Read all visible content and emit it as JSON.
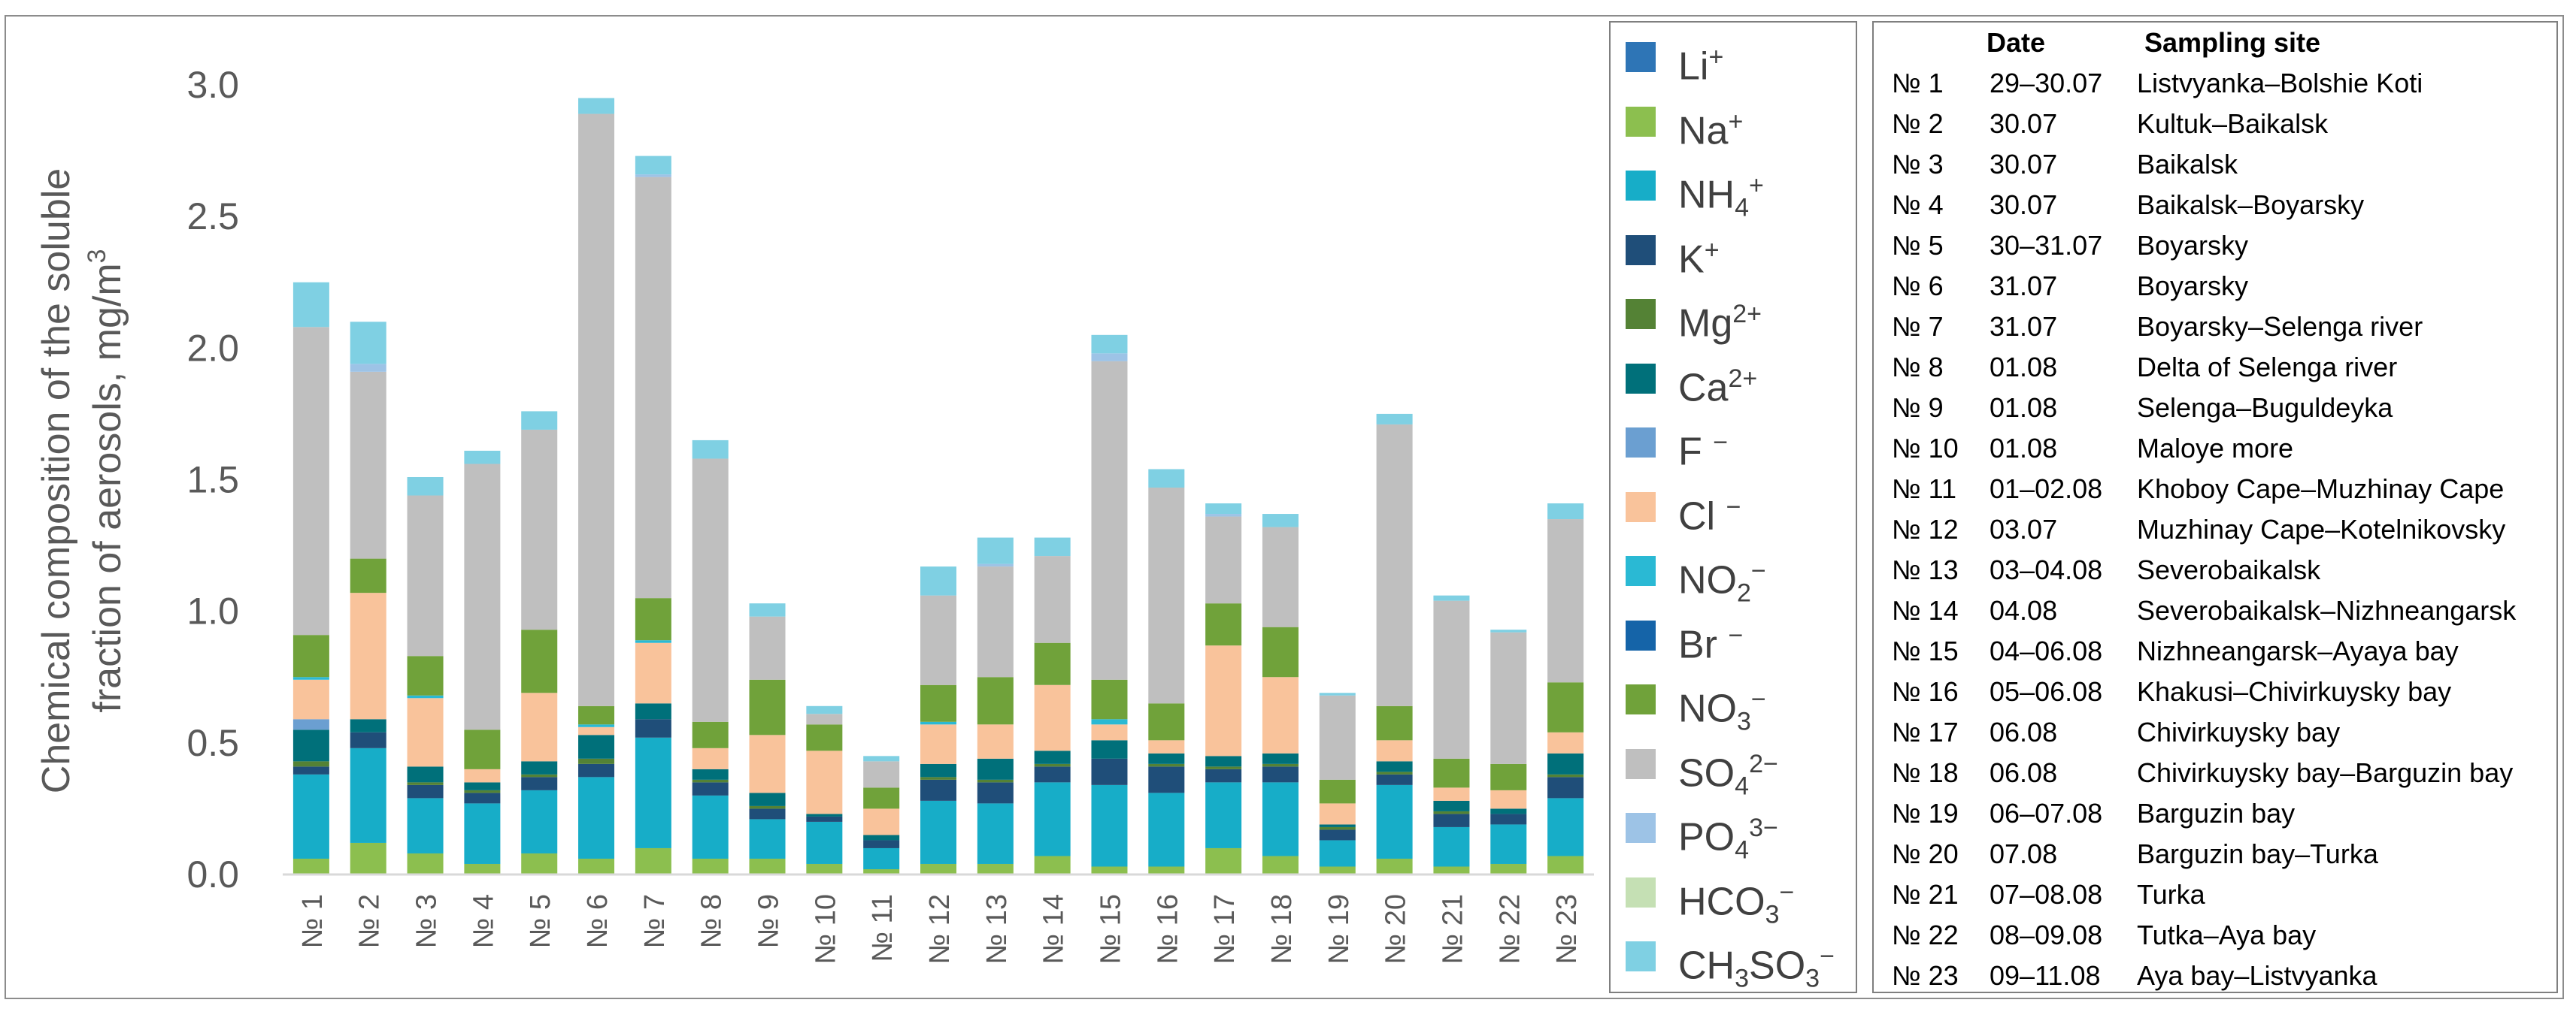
{
  "chart_data": {
    "type": "bar",
    "stacked": true,
    "ylabel_line1": "Chemical composition of the soluble",
    "ylabel_line2": "fraction of aerosols, mg/m",
    "ylabel_sup": "3",
    "ylim": [
      0,
      3.0
    ],
    "yticks": [
      "0.0",
      "0.5",
      "1.0",
      "1.5",
      "2.0",
      "2.5",
      "3.0"
    ],
    "categories": [
      "№ 1",
      "№ 2",
      "№ 3",
      "№ 4",
      "№ 5",
      "№ 6",
      "№ 7",
      "№ 8",
      "№ 9",
      "№ 10",
      "№ 11",
      "№ 12",
      "№ 13",
      "№ 14",
      "№ 15",
      "№ 16",
      "№ 17",
      "№ 18",
      "№ 19",
      "№ 20",
      "№ 21",
      "№ 22",
      "№ 23"
    ],
    "series": [
      {
        "name": "Li+",
        "color": "#2e75b6",
        "values": [
          0,
          0,
          0,
          0,
          0,
          0,
          0,
          0,
          0,
          0,
          0,
          0,
          0,
          0,
          0,
          0,
          0,
          0,
          0,
          0,
          0,
          0,
          0
        ]
      },
      {
        "name": "Na+",
        "color": "#8cbf4f",
        "values": [
          0.06,
          0.12,
          0.08,
          0.04,
          0.08,
          0.06,
          0.1,
          0.06,
          0.06,
          0.04,
          0.02,
          0.04,
          0.04,
          0.07,
          0.03,
          0.03,
          0.1,
          0.07,
          0.03,
          0.06,
          0.03,
          0.04,
          0.07
        ]
      },
      {
        "name": "NH4+",
        "color": "#17adc8",
        "values": [
          0.32,
          0.36,
          0.21,
          0.23,
          0.24,
          0.31,
          0.42,
          0.24,
          0.15,
          0.16,
          0.08,
          0.24,
          0.23,
          0.28,
          0.31,
          0.28,
          0.25,
          0.28,
          0.1,
          0.28,
          0.15,
          0.15,
          0.22
        ]
      },
      {
        "name": "K+",
        "color": "#1f4e79",
        "values": [
          0.03,
          0.06,
          0.05,
          0.04,
          0.05,
          0.05,
          0.07,
          0.05,
          0.04,
          0.02,
          0.03,
          0.08,
          0.08,
          0.06,
          0.1,
          0.1,
          0.05,
          0.06,
          0.04,
          0.04,
          0.05,
          0.04,
          0.08
        ]
      },
      {
        "name": "Mg2+",
        "color": "#548235",
        "values": [
          0.02,
          0,
          0.01,
          0.01,
          0.01,
          0.02,
          0,
          0.01,
          0.01,
          0,
          0,
          0.01,
          0.01,
          0.01,
          0,
          0.01,
          0.01,
          0.01,
          0.01,
          0.01,
          0.01,
          0,
          0.01
        ]
      },
      {
        "name": "Ca2+",
        "color": "#00707a",
        "values": [
          0.12,
          0.05,
          0.06,
          0.03,
          0.05,
          0.09,
          0.06,
          0.04,
          0.05,
          0.01,
          0.02,
          0.05,
          0.08,
          0.05,
          0.07,
          0.04,
          0.04,
          0.04,
          0.01,
          0.04,
          0.04,
          0.02,
          0.08
        ]
      },
      {
        "name": "F-",
        "color": "#6b9fd1",
        "values": [
          0.04,
          0,
          0,
          0,
          0,
          0,
          0,
          0,
          0,
          0,
          0,
          0,
          0,
          0,
          0,
          0,
          0,
          0,
          0,
          0,
          0,
          0,
          0
        ]
      },
      {
        "name": "Cl-",
        "color": "#f9c39b",
        "values": [
          0.15,
          0.48,
          0.26,
          0.05,
          0.26,
          0.03,
          0.23,
          0.08,
          0.22,
          0.24,
          0.1,
          0.15,
          0.13,
          0.25,
          0.06,
          0.05,
          0.42,
          0.29,
          0.08,
          0.08,
          0.05,
          0.07,
          0.08
        ]
      },
      {
        "name": "NO2-",
        "color": "#2ab9d4",
        "values": [
          0.01,
          0,
          0.01,
          0,
          0,
          0.01,
          0.01,
          0,
          0,
          0,
          0,
          0.01,
          0,
          0,
          0.02,
          0,
          0,
          0,
          0,
          0,
          0,
          0,
          0
        ]
      },
      {
        "name": "Br-",
        "color": "#1564a8",
        "values": [
          0,
          0,
          0,
          0,
          0,
          0,
          0,
          0,
          0,
          0,
          0,
          0,
          0,
          0,
          0,
          0,
          0,
          0,
          0,
          0,
          0,
          0,
          0
        ]
      },
      {
        "name": "NO3-",
        "color": "#70a23a",
        "values": [
          0.16,
          0.13,
          0.15,
          0.15,
          0.24,
          0.07,
          0.16,
          0.1,
          0.21,
          0.1,
          0.08,
          0.14,
          0.18,
          0.16,
          0.15,
          0.14,
          0.16,
          0.19,
          0.09,
          0.13,
          0.11,
          0.1,
          0.19
        ]
      },
      {
        "name": "SO42-",
        "color": "#bfbfbf",
        "values": [
          1.17,
          0.71,
          0.61,
          1.01,
          0.76,
          2.25,
          1.6,
          1.0,
          0.24,
          0.04,
          0.1,
          0.34,
          0.42,
          0.33,
          1.21,
          0.82,
          0.33,
          0.38,
          0.32,
          1.07,
          0.6,
          0.5,
          0.62
        ]
      },
      {
        "name": "PO43-",
        "color": "#9dc3e6",
        "values": [
          0,
          0.03,
          0,
          0,
          0,
          0,
          0.01,
          0,
          0,
          0,
          0,
          0,
          0.01,
          0,
          0.03,
          0,
          0.01,
          0,
          0,
          0,
          0,
          0,
          0
        ]
      },
      {
        "name": "HCO3-",
        "color": "#c5e0b4",
        "values": [
          0,
          0,
          0,
          0,
          0,
          0,
          0,
          0,
          0,
          0,
          0,
          0,
          0,
          0,
          0,
          0,
          0,
          0,
          0,
          0,
          0,
          0,
          0
        ]
      },
      {
        "name": "CH3SO3-",
        "color": "#7fd0e3",
        "values": [
          0.17,
          0.16,
          0.07,
          0.05,
          0.07,
          0.06,
          0.07,
          0.07,
          0.05,
          0.03,
          0.02,
          0.11,
          0.1,
          0.07,
          0.07,
          0.07,
          0.04,
          0.05,
          0.01,
          0.04,
          0.02,
          0.01,
          0.06
        ]
      }
    ]
  },
  "legend": [
    {
      "base": "Li",
      "sub": "",
      "sup": "+",
      "color": "#2e75b6"
    },
    {
      "base": "Na",
      "sub": "",
      "sup": "+",
      "color": "#8cbf4f"
    },
    {
      "base": "NH",
      "sub": "4",
      "sup": "+",
      "color": "#17adc8"
    },
    {
      "base": "K",
      "sub": "",
      "sup": "+",
      "color": "#1f4e79"
    },
    {
      "base": "Mg",
      "sub": "",
      "sup": "2+",
      "color": "#548235"
    },
    {
      "base": "Ca",
      "sub": "",
      "sup": "2+",
      "color": "#00707a"
    },
    {
      "base": "F ",
      "sub": "",
      "sup": "−",
      "color": "#6b9fd1"
    },
    {
      "base": "Cl ",
      "sub": "",
      "sup": "−",
      "color": "#f9c39b"
    },
    {
      "base": "NO",
      "sub": "2",
      "sup": "−",
      "color": "#2ab9d4"
    },
    {
      "base": "Br ",
      "sub": "",
      "sup": "−",
      "color": "#1564a8"
    },
    {
      "base": "NO",
      "sub": "3",
      "sup": "−",
      "color": "#70a23a"
    },
    {
      "base": "SO",
      "sub": "4",
      "sup": "2−",
      "color": "#bfbfbf"
    },
    {
      "base": "PO",
      "sub": "4",
      "sup": "3−",
      "color": "#9dc3e6"
    },
    {
      "base": "HCO",
      "sub": "3",
      "sup": "−",
      "color": "#c5e0b4"
    },
    {
      "base": "CH",
      "sub": "3",
      "mid": "SO",
      "sub2": "3",
      "sup": "−",
      "color": "#7fd0e3"
    }
  ],
  "sites": {
    "header_date": "Date",
    "header_site": "Sampling site",
    "rows": [
      {
        "no": "№ 1",
        "date": "29–30.07",
        "site": "Listvyanka–Bolshie Koti"
      },
      {
        "no": "№ 2",
        "date": "30.07",
        "site": "Kultuk–Baikalsk"
      },
      {
        "no": "№ 3",
        "date": "30.07",
        "site": "Baikalsk"
      },
      {
        "no": "№ 4",
        "date": "30.07",
        "site": "Baikalsk–Boyarsky"
      },
      {
        "no": "№ 5",
        "date": "30–31.07",
        "site": "Boyarsky"
      },
      {
        "no": "№ 6",
        "date": "31.07",
        "site": "Boyarsky"
      },
      {
        "no": "№ 7",
        "date": "31.07",
        "site": "Boyarsky–Selenga river"
      },
      {
        "no": "№ 8",
        "date": "01.08",
        "site": "Delta of Selenga river"
      },
      {
        "no": "№ 9",
        "date": "01.08",
        "site": "Selenga–Buguldeyka"
      },
      {
        "no": "№ 10",
        "date": "01.08",
        "site": "Maloye more"
      },
      {
        "no": "№ 11",
        "date": "01–02.08",
        "site": "Khoboy Cape–Muzhinay Cape"
      },
      {
        "no": "№ 12",
        "date": "03.07",
        "site": "Muzhinay Cape–Kotelnikovsky"
      },
      {
        "no": "№ 13",
        "date": "03–04.08",
        "site": "Severobaikalsk"
      },
      {
        "no": "№ 14",
        "date": "04.08",
        "site": "Severobaikalsk–Nizhneangarsk"
      },
      {
        "no": "№ 15",
        "date": "04–06.08",
        "site": "Nizhneangarsk–Ayaya bay"
      },
      {
        "no": "№ 16",
        "date": "05–06.08",
        "site": "Khakusi–Chivirkuysky bay"
      },
      {
        "no": "№ 17",
        "date": "06.08",
        "site": "Chivirkuysky bay"
      },
      {
        "no": "№ 18",
        "date": "06.08",
        "site": "Chivirkuysky bay–Barguzin bay"
      },
      {
        "no": "№ 19",
        "date": "06–07.08",
        "site": "Barguzin bay"
      },
      {
        "no": "№ 20",
        "date": "07.08",
        "site": "Barguzin bay–Turka"
      },
      {
        "no": "№ 21",
        "date": "07–08.08",
        "site": "Turka"
      },
      {
        "no": "№ 22",
        "date": "08–09.08",
        "site": "Tutka–Aya bay"
      },
      {
        "no": "№ 23",
        "date": "09–11.08",
        "site": "Aya bay–Listvyanka"
      }
    ]
  }
}
